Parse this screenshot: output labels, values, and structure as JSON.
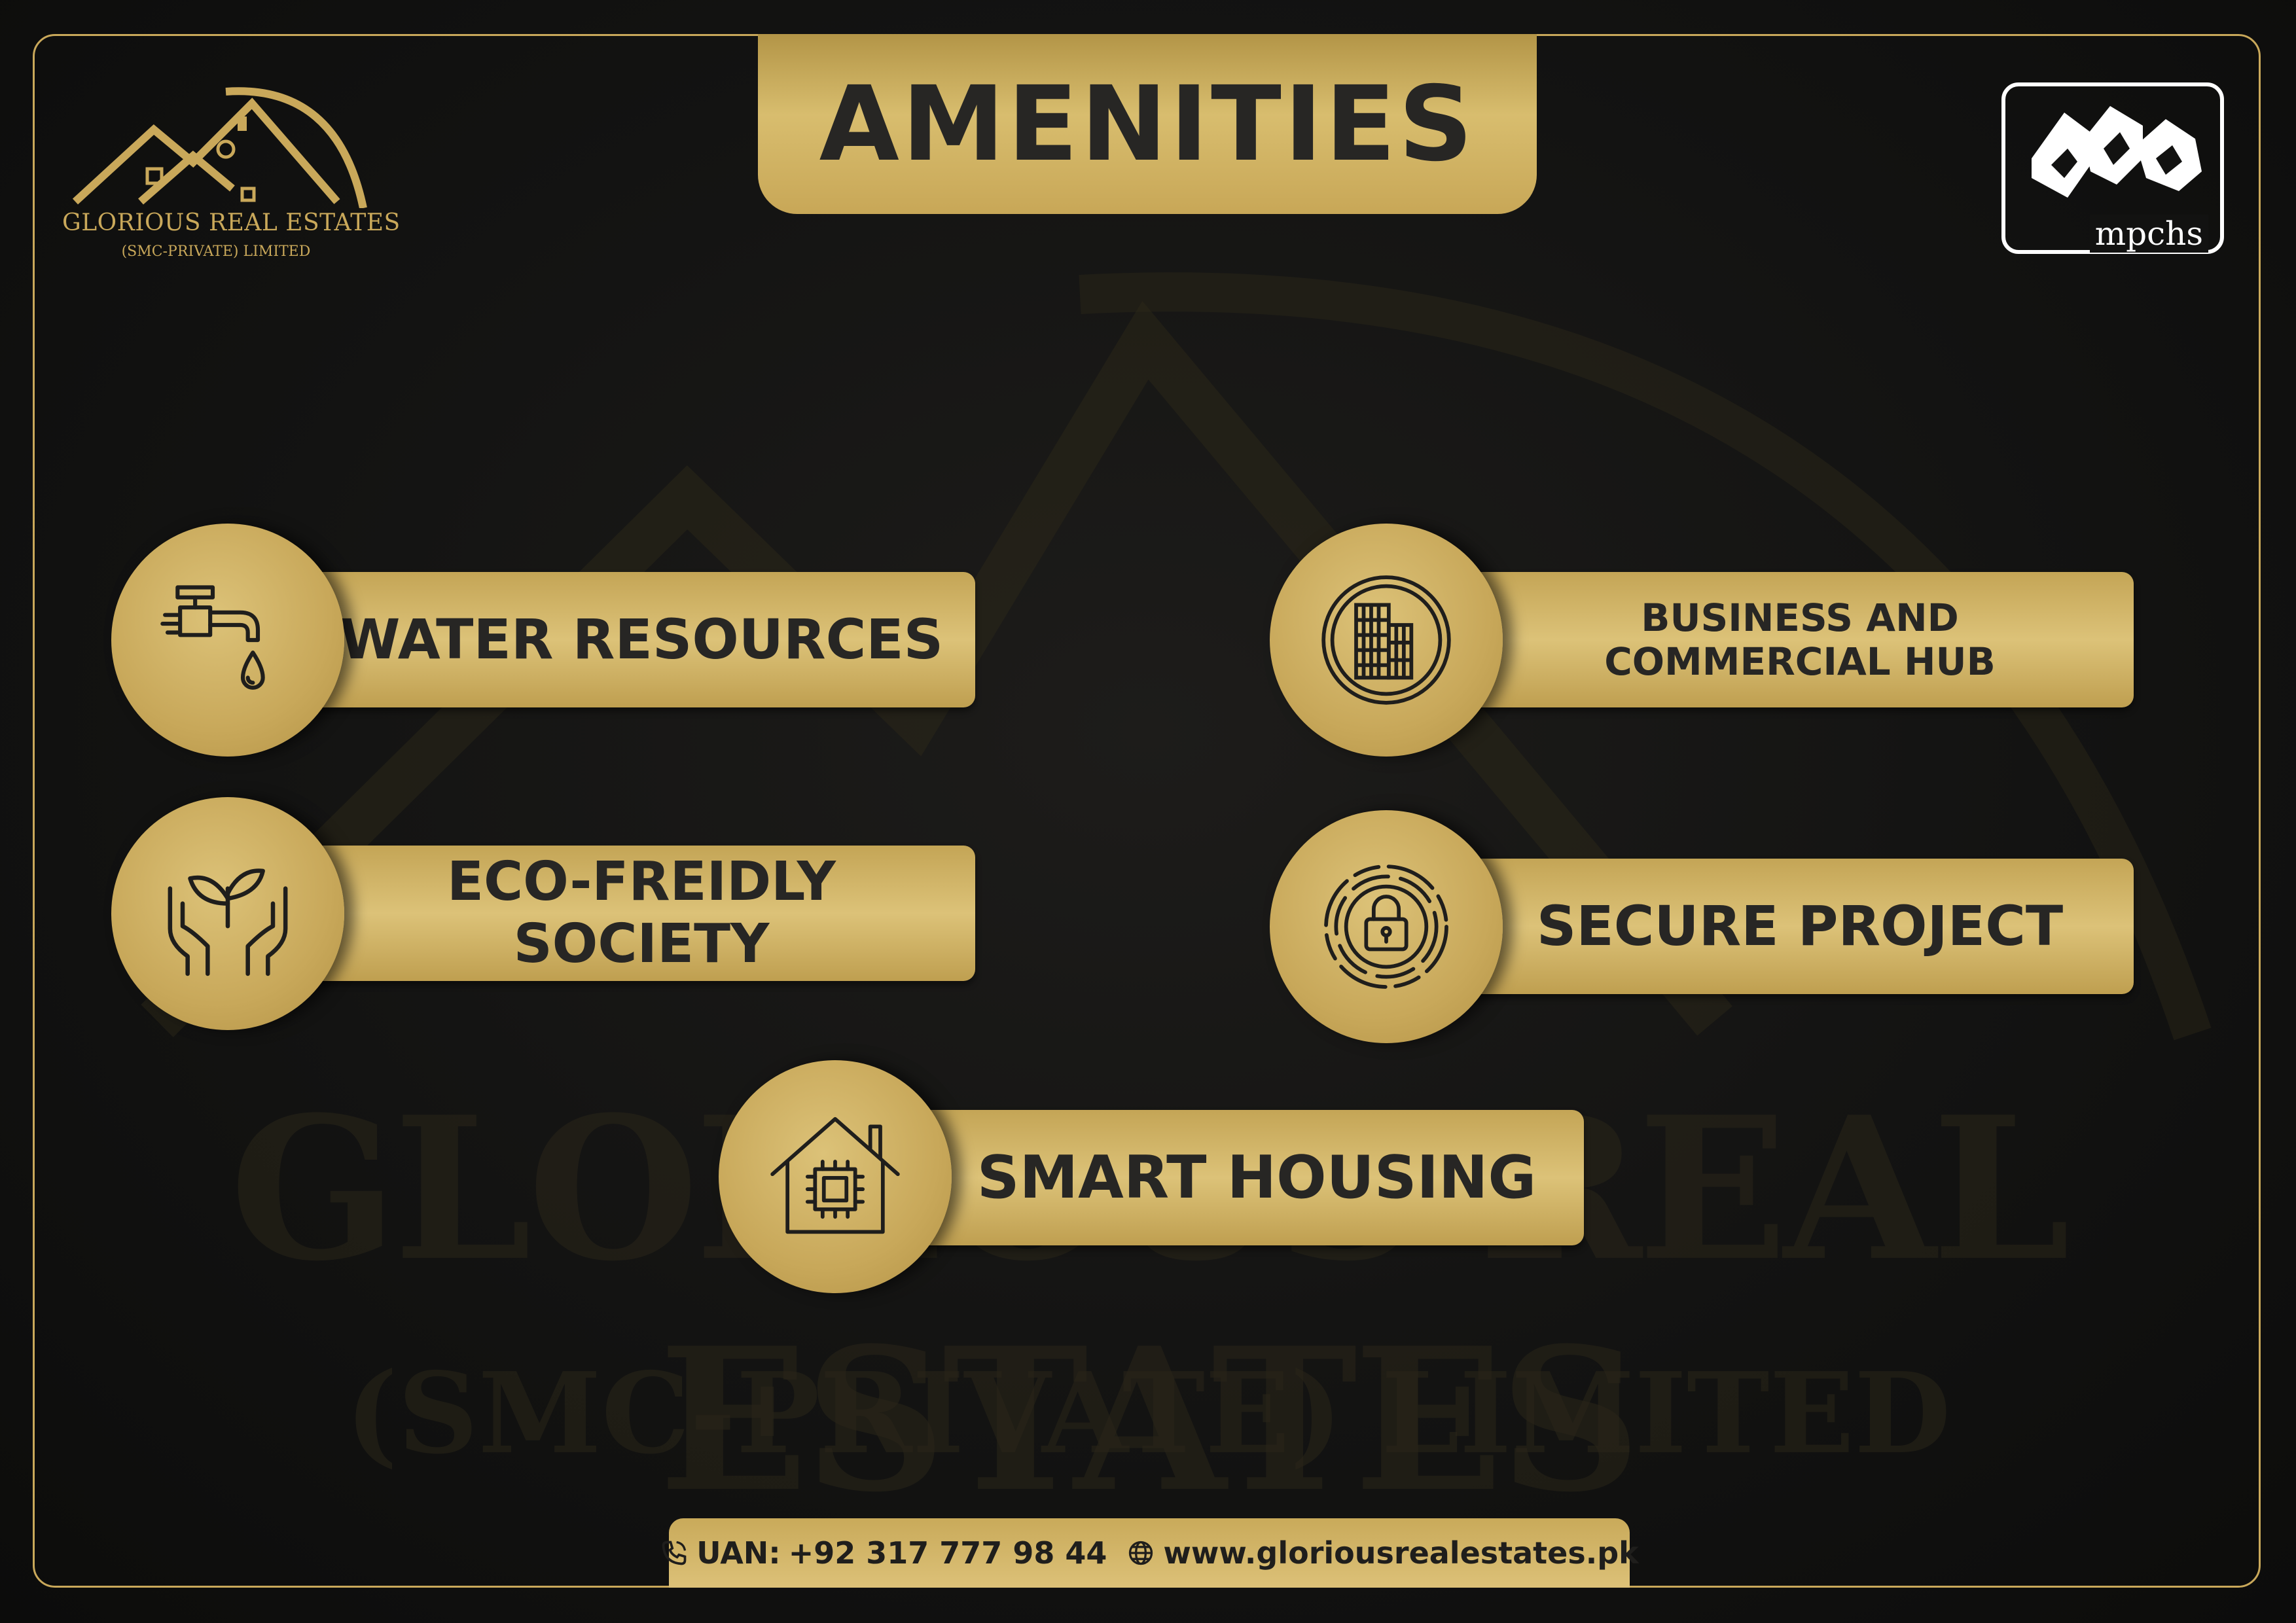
{
  "title": "AMENITIES",
  "brand": {
    "name": "GLORIOUS REAL ESTATES",
    "subtitle": "(SMC-PRIVATE) LIMITED",
    "partner_logo_text": "mpchs"
  },
  "watermark": {
    "line1": "GLORIOUS REAL ESTATES",
    "line2": "(SMC-PRIVATE) LIMITED"
  },
  "amenities": [
    {
      "label": "WATER RESOURCES",
      "icon": "water-tap-icon"
    },
    {
      "label": "BUSINESS AND COMMERCIAL HUB",
      "icon": "building-icon"
    },
    {
      "label": "ECO-FREIDLY SOCIETY",
      "icon": "plant-hands-icon"
    },
    {
      "label": "SECURE PROJECT",
      "icon": "padlock-icon"
    },
    {
      "label": "SMART HOUSING",
      "icon": "smart-house-icon"
    }
  ],
  "contact": {
    "uan_label": "UAN:",
    "phone": "+92 317 777 98 44",
    "website": "www.gloriousrealestates.pk"
  },
  "colors": {
    "gold": "#c9a85a",
    "gold_light": "#dcc278",
    "background": "#131312",
    "text_dark": "#272624"
  }
}
